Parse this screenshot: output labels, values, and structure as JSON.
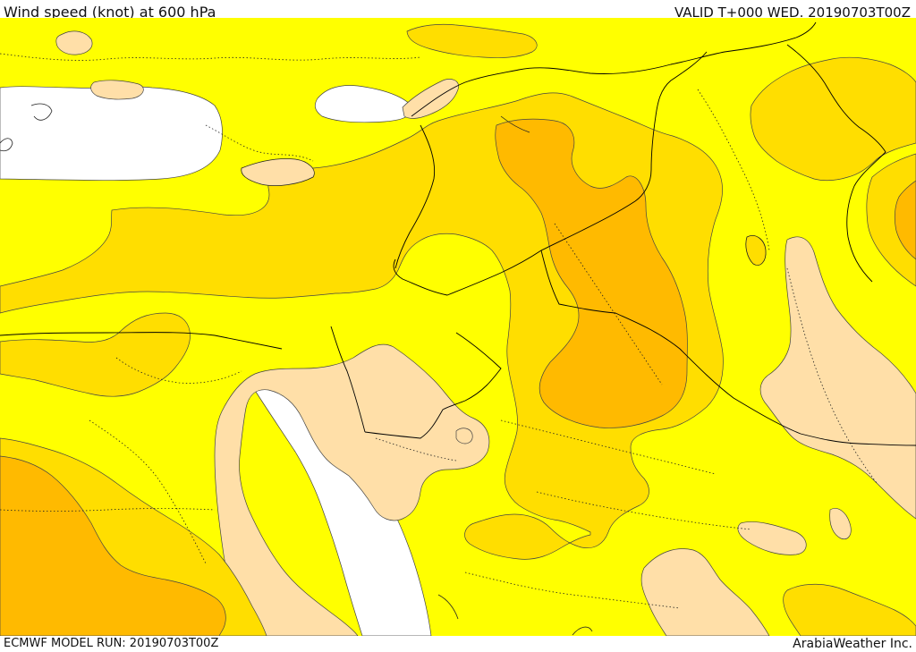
{
  "header": {
    "title": "Wind speed (knot) at 600 hPa",
    "valid": "VALID T+000 WED. 20190703T00Z"
  },
  "footer": {
    "model_run": "ECMWF MODEL RUN: 20190703T00Z",
    "provider": "ArabiaWeather Inc."
  },
  "colors": {
    "sea": "#ffffff",
    "band_low": "#ffdfa8",
    "band_1": "#ffff00",
    "band_2": "#ffde00",
    "band_3": "#ffba00",
    "contour": "#444444",
    "border": "#000000",
    "internal_border": "#222222"
  }
}
